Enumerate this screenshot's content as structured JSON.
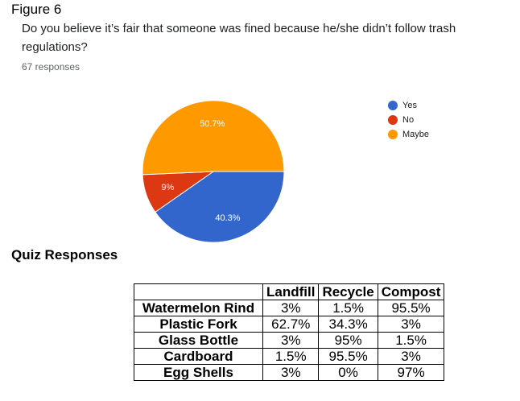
{
  "figure_label": "Figure 6",
  "question": "Do you believe it’s fair that someone was fined because he/she didn’t follow trash regulations?",
  "responses": "67 responses",
  "chart_data": {
    "type": "pie",
    "title": "",
    "legend_position": "right",
    "slices": [
      {
        "label": "Yes",
        "value": 40.3,
        "display": "40.3%",
        "color": "#3366cc"
      },
      {
        "label": "No",
        "value": 9,
        "display": "9%",
        "color": "#dc3912"
      },
      {
        "label": "Maybe",
        "value": 50.7,
        "display": "50.7%",
        "color": "#ff9900"
      }
    ]
  },
  "quiz": {
    "title": "Quiz Responses",
    "columns": [
      "Landfill",
      "Recycle",
      "Compost"
    ],
    "rows": [
      {
        "item": "Watermelon Rind",
        "values": [
          "3%",
          "1.5%",
          "95.5%"
        ]
      },
      {
        "item": "Plastic Fork",
        "values": [
          "62.7%",
          "34.3%",
          "3%"
        ]
      },
      {
        "item": "Glass Bottle",
        "values": [
          "3%",
          "95%",
          "1.5%"
        ]
      },
      {
        "item": "Cardboard",
        "values": [
          "1.5%",
          "95.5%",
          "3%"
        ]
      },
      {
        "item": "Egg Shells",
        "values": [
          "3%",
          "0%",
          "97%"
        ]
      }
    ]
  }
}
